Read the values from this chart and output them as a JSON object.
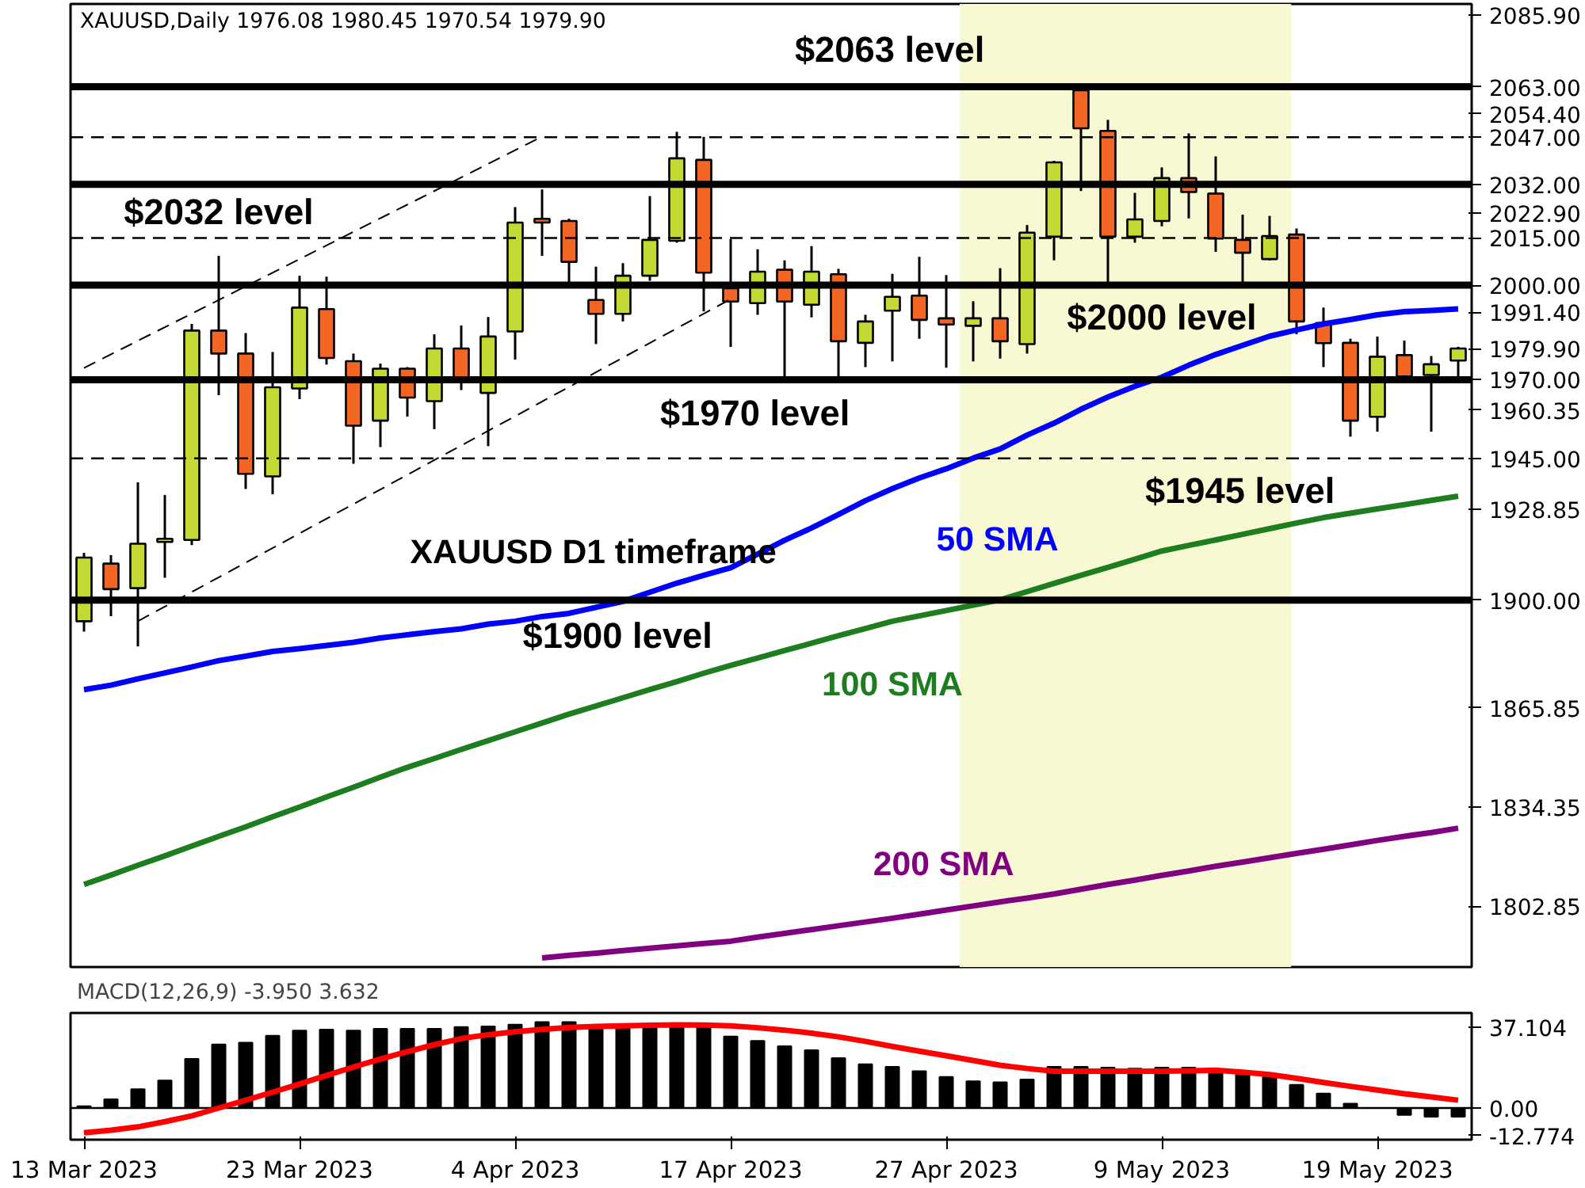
{
  "chart_data": [
    {
      "type": "candlestick",
      "title": "XAUUSD,Daily 1976.08 1980.45 1970.54 1979.90",
      "categories": [
        null,
        null,
        null,
        null,
        null,
        null,
        null,
        null,
        null,
        null,
        null,
        null,
        null,
        null,
        null,
        null,
        null,
        null,
        null,
        null,
        null,
        null,
        null,
        null,
        null,
        null,
        null,
        null,
        null,
        null,
        null,
        null,
        null,
        null,
        null,
        null,
        null,
        null,
        null,
        null,
        null,
        null,
        null,
        null,
        null,
        null,
        null,
        null,
        null,
        null,
        null,
        null
      ],
      "ohlc": [
        [
          1893.3,
          1915.0,
          1890.0,
          1913.5
        ],
        [
          1911.6,
          1914.3,
          1894.9,
          1903.5
        ],
        [
          1903.8,
          1937.4,
          1885.3,
          1917.9
        ],
        [
          1918.5,
          1933.4,
          1907.1,
          1919.5
        ],
        [
          1919.1,
          1987.7,
          1917.5,
          1985.6
        ],
        [
          1985.6,
          2009.3,
          1965.1,
          1978.3
        ],
        [
          1978.3,
          1984.8,
          1935.3,
          1940.1
        ],
        [
          1939.3,
          1978.8,
          1933.6,
          1967.6
        ],
        [
          1967.2,
          2003.0,
          1963.8,
          1992.9
        ],
        [
          1992.4,
          2002.7,
          1974.8,
          1976.9
        ],
        [
          1975.9,
          1978.3,
          1943.3,
          1955.4
        ],
        [
          1957.0,
          1975.1,
          1948.6,
          1973.5
        ],
        [
          1973.5,
          1974.0,
          1958.3,
          1964.3
        ],
        [
          1963.2,
          1984.4,
          1954.3,
          1979.9
        ],
        [
          1979.9,
          1987.2,
          1966.7,
          1970.8
        ],
        [
          1965.8,
          1989.9,
          1948.9,
          1983.7
        ],
        [
          1985.3,
          2024.8,
          1976.4,
          2019.9
        ],
        [
          2021.1,
          2030.4,
          2009.3,
          2019.9
        ],
        [
          2020.4,
          2021.1,
          1999.8,
          2007.4
        ],
        [
          1995.3,
          2005.9,
          1981.3,
          1990.9
        ],
        [
          1990.9,
          2007.0,
          1988.5,
          2003.0
        ],
        [
          2003.0,
          2028.3,
          2001.4,
          2014.4
        ],
        [
          2014.1,
          2048.7,
          2013.5,
          2040.3
        ],
        [
          2039.8,
          2047.1,
          1991.7,
          2004.0
        ],
        [
          1999.0,
          2014.6,
          1980.4,
          1994.8
        ],
        [
          1994.3,
          2011.4,
          1990.6,
          2004.3
        ],
        [
          2004.9,
          2007.9,
          1970.8,
          1994.8
        ],
        [
          1993.8,
          2012.4,
          1989.8,
          2004.3
        ],
        [
          2003.5,
          2005.2,
          1970.8,
          1982.2
        ],
        [
          1981.7,
          1990.6,
          1974.0,
          1988.5
        ],
        [
          1991.9,
          2003.6,
          1975.8,
          1996.3
        ],
        [
          1996.7,
          2009.0,
          1983.0,
          1989.0
        ],
        [
          1989.5,
          2003.2,
          1973.8,
          1987.5
        ],
        [
          1987.1,
          1994.9,
          1975.8,
          1989.5
        ],
        [
          1989.5,
          2005.4,
          1976.7,
          1982.2
        ],
        [
          1981.3,
          2019.1,
          1978.3,
          2016.7
        ],
        [
          2015.4,
          2039.5,
          2007.9,
          2039.0
        ],
        [
          2061.9,
          2063.0,
          2029.9,
          2049.8
        ],
        [
          2049.0,
          2052.5,
          2000.6,
          2015.4
        ],
        [
          2015.4,
          2029.3,
          2013.5,
          2020.9
        ],
        [
          2020.4,
          2037.4,
          2018.7,
          2034.0
        ],
        [
          2034.0,
          2048.2,
          2021.2,
          2029.6
        ],
        [
          2029.1,
          2040.9,
          2010.6,
          2014.8
        ],
        [
          2014.4,
          2022.4,
          2000.6,
          2010.3
        ],
        [
          2008.3,
          2022.0,
          2007.9,
          2015.6
        ],
        [
          2016.1,
          2018.0,
          1984.4,
          1988.5
        ],
        [
          1988.0,
          1992.9,
          1974.0,
          1981.6
        ],
        [
          1981.7,
          1983.0,
          1951.9,
          1957.0
        ],
        [
          1958.2,
          1983.7,
          1953.5,
          1977.3
        ],
        [
          1977.8,
          1982.4,
          1970.8,
          1971.0
        ],
        [
          1971.5,
          1977.5,
          1953.5,
          1974.9
        ],
        [
          1976.08,
          1980.45,
          1970.54,
          1979.9
        ]
      ],
      "colors": [
        "#c5d935",
        "#f26522",
        "#c5d935",
        "#c5d935",
        "#c5d935",
        "#f26522",
        "#f26522",
        "#c5d935",
        "#c5d935",
        "#f26522",
        "#f26522",
        "#c5d935",
        "#f26522",
        "#c5d935",
        "#f26522",
        "#c5d935",
        "#c5d935",
        "#f26522",
        "#f26522",
        "#f26522",
        "#c5d935",
        "#c5d935",
        "#c5d935",
        "#f26522",
        "#f26522",
        "#c5d935",
        "#f26522",
        "#c5d935",
        "#f26522",
        "#c5d935",
        "#c5d935",
        "#f26522",
        "#f26522",
        "#c5d935",
        "#f26522",
        "#c5d935",
        "#c5d935",
        "#f26522",
        "#f26522",
        "#c5d935",
        "#c5d935",
        "#f26522",
        "#f26522",
        "#f26522",
        "#c5d935",
        "#f26522",
        "#f26522",
        "#f26522",
        "#c5d935",
        "#f26522",
        "#c5d935",
        "#c5d935"
      ],
      "series": [
        {
          "name": "50 SMA",
          "type": "line",
          "color": "#0000ff",
          "values": [
            1871.6,
            1873.0,
            1875.0,
            1876.9,
            1878.8,
            1880.8,
            1882.2,
            1883.7,
            1884.6,
            1885.6,
            1886.6,
            1888.0,
            1889.0,
            1890.0,
            1890.9,
            1892.4,
            1893.3,
            1894.8,
            1895.8,
            1897.7,
            1899.6,
            1902.5,
            1905.4,
            1907.9,
            1910.3,
            1914.6,
            1919.0,
            1922.9,
            1927.2,
            1931.6,
            1935.4,
            1938.8,
            1941.7,
            1945.1,
            1948.0,
            1952.4,
            1956.2,
            1960.6,
            1964.5,
            1967.9,
            1970.8,
            1974.6,
            1978.0,
            1980.9,
            1983.8,
            1985.8,
            1987.7,
            1989.1,
            1990.6,
            1991.6,
            1992.0,
            1992.5
          ]
        },
        {
          "name": "100 SMA",
          "type": "line",
          "color": "#1e7d1e",
          "values": [
            1809.7,
            1812.7,
            1815.8,
            1818.8,
            1821.9,
            1825.0,
            1828.0,
            1831.2,
            1834.3,
            1837.5,
            1840.6,
            1843.8,
            1846.9,
            1849.7,
            1852.6,
            1855.4,
            1858.2,
            1861.0,
            1863.8,
            1866.4,
            1869.0,
            1871.6,
            1874.1,
            1876.8,
            1879.3,
            1881.6,
            1884.0,
            1886.3,
            1888.7,
            1891.0,
            1893.3,
            1895.0,
            1896.7,
            1898.4,
            1900.1,
            1902.7,
            1905.3,
            1907.9,
            1910.4,
            1913.0,
            1915.6,
            1917.4,
            1919.1,
            1920.9,
            1922.7,
            1924.5,
            1926.2,
            1927.6,
            1929.0,
            1930.3,
            1931.7,
            1933.0
          ]
        },
        {
          "name": "200 SMA",
          "type": "line",
          "color": "#800080",
          "values": [
            null,
            null,
            null,
            null,
            null,
            null,
            null,
            null,
            null,
            null,
            null,
            null,
            null,
            null,
            null,
            null,
            null,
            1786.4,
            1787.2,
            1787.9,
            1788.7,
            1789.5,
            1790.2,
            1791.0,
            1791.7,
            1793.0,
            1794.2,
            1795.4,
            1796.6,
            1797.8,
            1799.0,
            1800.3,
            1801.6,
            1802.9,
            1804.2,
            1805.4,
            1806.7,
            1808.2,
            1809.7,
            1811.1,
            1812.6,
            1814.0,
            1815.5,
            1816.8,
            1818.2,
            1819.6,
            1820.9,
            1822.3,
            1823.7,
            1825.0,
            1826.2,
            1827.6
          ]
        },
        {
          "type": "line",
          "color": "#000000",
          "line_style": "dashed",
          "values": [
            1973.7,
            null,
            null,
            null,
            null,
            null,
            null,
            null,
            null,
            null,
            null,
            null,
            null,
            null,
            null,
            null,
            null,
            2047.2,
            null,
            null,
            null,
            null,
            null,
            null,
            null,
            null,
            null,
            null,
            null,
            null,
            null,
            null,
            null,
            null,
            null,
            null,
            null,
            null,
            null,
            null,
            null,
            null,
            null,
            null,
            null,
            null,
            null,
            null,
            null,
            null,
            null,
            null
          ]
        },
        {
          "type": "line",
          "color": "#000000",
          "line_style": "dashed",
          "values": [
            null,
            null,
            1893.3,
            null,
            null,
            null,
            null,
            null,
            null,
            null,
            null,
            null,
            null,
            null,
            null,
            null,
            null,
            null,
            null,
            null,
            null,
            null,
            null,
            null,
            1995.6,
            null,
            null,
            null,
            null,
            null,
            null,
            null,
            null,
            null,
            null,
            null,
            null,
            null,
            null,
            null,
            null,
            null,
            null,
            null,
            null,
            null,
            null,
            null,
            null,
            null,
            null,
            null
          ]
        }
      ],
      "ylim": [
        1783.5,
        2089.3
      ],
      "yticks": [
        {
          "value": 2085.9,
          "label": "2085.90"
        },
        {
          "value": 2063,
          "label": "2063.00"
        },
        {
          "value": 2054.4,
          "label": "2054.40"
        },
        {
          "value": 2047,
          "label": "2047.00"
        },
        {
          "value": 2032,
          "label": "2032.00"
        },
        {
          "value": 2022.9,
          "label": "2022.90"
        },
        {
          "value": 2015,
          "label": "2015.00"
        },
        {
          "value": 2000,
          "label": "2000.00"
        },
        {
          "value": 1991.4,
          "label": "1991.40"
        },
        {
          "value": 1979.9,
          "label": "1979.90"
        },
        {
          "value": 1970,
          "label": "1970.00"
        },
        {
          "value": 1960.35,
          "label": "1960.35"
        },
        {
          "value": 1945,
          "label": "1945.00"
        },
        {
          "value": 1928.85,
          "label": "1928.85"
        },
        {
          "value": 1900,
          "label": "1900.00"
        },
        {
          "value": 1865.85,
          "label": "1865.85"
        },
        {
          "value": 1834.35,
          "label": "1834.35"
        },
        {
          "value": 1802.85,
          "label": "1802.85"
        }
      ],
      "ref_lines": [
        {
          "axis": "y",
          "value": 2063,
          "label": "$2063 level",
          "color": "#000000",
          "line_style": "solid"
        },
        {
          "axis": "y",
          "value": 2047,
          "color": "#000000",
          "line_style": "dashed"
        },
        {
          "axis": "y",
          "value": 2032,
          "label": "$2032 level",
          "color": "#000000",
          "line_style": "solid"
        },
        {
          "axis": "y",
          "value": 2015,
          "color": "#000000",
          "line_style": "dashed"
        },
        {
          "axis": "y",
          "value": 2000,
          "label": "$2000 level",
          "color": "#000000",
          "line_style": "solid"
        },
        {
          "axis": "y",
          "value": 1970,
          "label": "$1970 level",
          "color": "#000000",
          "line_style": "solid"
        },
        {
          "axis": "y",
          "value": 1945,
          "label": "$1945 level",
          "color": "#000000",
          "line_style": "dashed"
        },
        {
          "axis": "y",
          "value": 1900,
          "label": "$1900 level",
          "color": "#000000",
          "line_style": "solid"
        }
      ],
      "annotations": [
        "XAUUSD D1 timeframe"
      ],
      "grid": false,
      "tick_labels": "y"
    },
    {
      "type": "bar",
      "title": "MACD(12,26,9) -3.950 3.632",
      "categories": [
        "13 Mar 2023",
        null,
        null,
        null,
        null,
        null,
        null,
        null,
        "23 Mar 2023",
        null,
        null,
        null,
        null,
        null,
        null,
        null,
        "4 Apr 2023",
        null,
        null,
        null,
        null,
        null,
        null,
        null,
        "17 Apr 2023",
        null,
        null,
        null,
        null,
        null,
        null,
        null,
        "27 Apr 2023",
        null,
        null,
        null,
        null,
        null,
        null,
        null,
        "9 May 2023",
        null,
        null,
        null,
        null,
        null,
        null,
        null,
        "19 May 2023",
        null,
        null,
        null
      ],
      "series": [
        {
          "type": "bar",
          "color": "#000000",
          "values": [
            0.8,
            4.0,
            8.7,
            12.7,
            22.6,
            29.3,
            30.1,
            33.3,
            35.7,
            36.1,
            35.7,
            36.5,
            36.5,
            36.5,
            37.3,
            37.6,
            38.4,
            39.6,
            39.6,
            38.0,
            37.3,
            37.3,
            38.0,
            37.3,
            32.9,
            30.9,
            28.5,
            26.6,
            23.0,
            20.2,
            19.0,
            17.0,
            14.3,
            12.3,
            11.9,
            13.1,
            19.0,
            19.0,
            18.6,
            18.2,
            18.6,
            18.6,
            17.8,
            15.9,
            14.3,
            10.7,
            6.7,
            2.0,
            0.0,
            -3.2,
            -4.0,
            -4.0
          ]
        },
        {
          "type": "line",
          "color": "#ff0000",
          "values": [
            -11.4,
            -10.2,
            -8.7,
            -6.3,
            -3.6,
            0.0,
            3.6,
            7.3,
            11.1,
            15.0,
            18.9,
            22.6,
            26.0,
            29.2,
            32.0,
            33.8,
            35.1,
            36.2,
            37.1,
            37.6,
            37.9,
            38.1,
            38.3,
            38.2,
            37.9,
            37.0,
            35.9,
            34.5,
            32.8,
            30.7,
            28.4,
            26.2,
            24.1,
            21.9,
            19.7,
            18.2,
            17.0,
            17.0,
            17.0,
            17.0,
            17.0,
            17.2,
            17.4,
            16.5,
            15.4,
            13.7,
            11.8,
            10.0,
            8.3,
            6.6,
            5.1,
            3.6
          ]
        }
      ],
      "ylim": [
        -14.6,
        43.8
      ],
      "yticks": [
        {
          "value": 37.104,
          "label": "37.104"
        },
        {
          "value": 0,
          "label": "0.00"
        },
        {
          "value": -12.774,
          "label": "-12.774"
        }
      ],
      "grid": false
    }
  ]
}
